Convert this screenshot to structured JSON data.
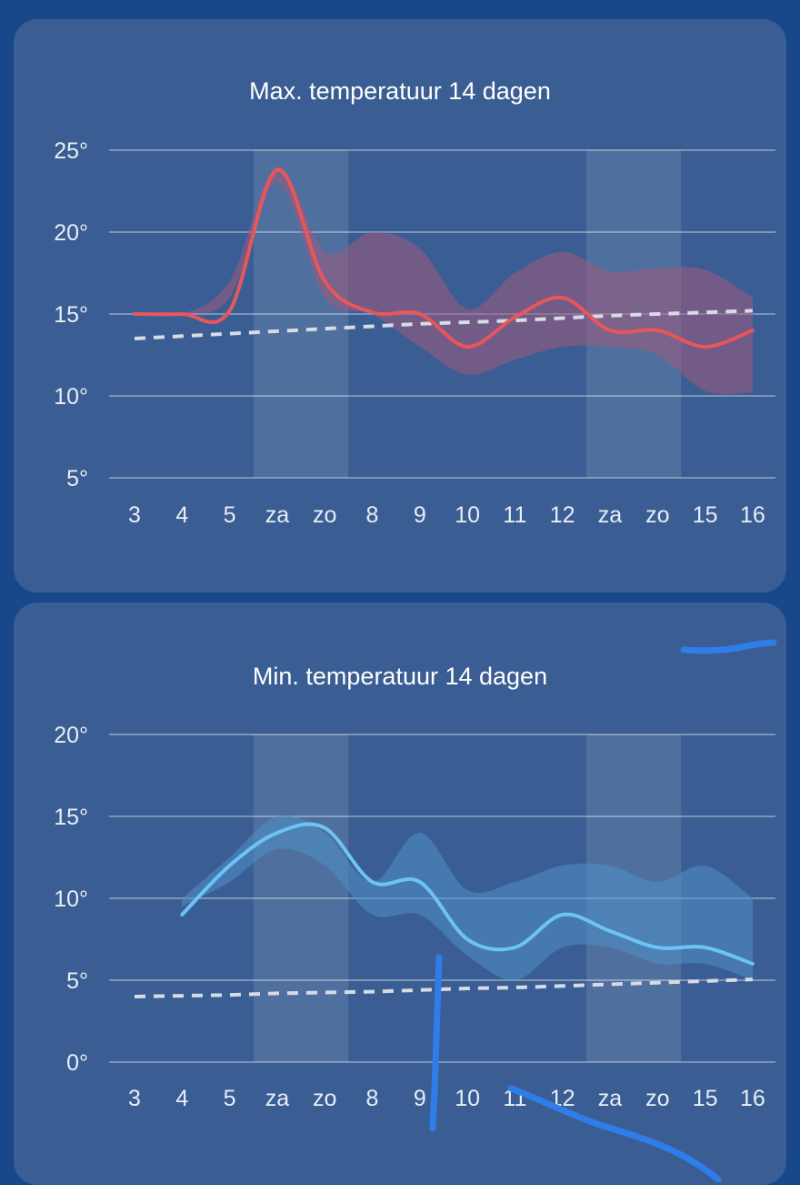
{
  "background_color": "#18478a",
  "card_color": "#3a5e93",
  "chart_data": [
    {
      "type": "line",
      "title": "Max. temperatuur 14 dagen",
      "xlabel": "",
      "ylabel": "",
      "categories": [
        "3",
        "4",
        "5",
        "za",
        "zo",
        "8",
        "9",
        "10",
        "11",
        "12",
        "za",
        "zo",
        "15",
        "16"
      ],
      "y_ticks": [
        5,
        10,
        15,
        20,
        25
      ],
      "y_tick_labels": [
        "5°",
        "10°",
        "15°",
        "20°",
        "25°"
      ],
      "ylim": [
        5,
        25
      ],
      "grid": true,
      "weekend_bands": [
        [
          3,
          4
        ],
        [
          10,
          11
        ]
      ],
      "series": [
        {
          "role": "forecast",
          "color": "#e8565a",
          "values": [
            15,
            15,
            15.2,
            23.8,
            17,
            15.1,
            15,
            13,
            14.8,
            16,
            14,
            14,
            13,
            14
          ]
        },
        {
          "role": "range",
          "color": "#a05a7e",
          "low": [
            15,
            15,
            16,
            23,
            16,
            15,
            13,
            11.3,
            12.2,
            13,
            13,
            12.5,
            10.3,
            10.2
          ],
          "high": [
            15,
            15,
            17,
            24,
            18.8,
            20,
            19,
            15.3,
            17.5,
            18.8,
            17.6,
            17.8,
            17.7,
            16
          ]
        },
        {
          "role": "normal",
          "style": "dashed",
          "color": "#d7dbe6",
          "values": [
            13.5,
            13.65,
            13.8,
            13.95,
            14.1,
            14.25,
            14.4,
            14.5,
            14.6,
            14.75,
            14.9,
            15.0,
            15.1,
            15.2
          ]
        }
      ]
    },
    {
      "type": "line",
      "title": "Min. temperatuur 14 dagen",
      "xlabel": "",
      "ylabel": "",
      "categories": [
        "3",
        "4",
        "5",
        "za",
        "zo",
        "8",
        "9",
        "10",
        "11",
        "12",
        "za",
        "zo",
        "15",
        "16"
      ],
      "y_ticks": [
        0,
        5,
        10,
        15,
        20
      ],
      "y_tick_labels": [
        "0°",
        "5°",
        "10°",
        "15°",
        "20°"
      ],
      "ylim": [
        0,
        20
      ],
      "grid": true,
      "weekend_bands": [
        [
          3,
          4
        ],
        [
          10,
          11
        ]
      ],
      "series": [
        {
          "role": "forecast",
          "color": "#6cc3f5",
          "values": [
            null,
            9,
            12,
            14,
            14.3,
            11,
            11,
            7.5,
            7,
            9,
            8,
            7,
            7,
            6
          ]
        },
        {
          "role": "range",
          "color": "#4e8fc7",
          "low": [
            null,
            9.5,
            11,
            13,
            12,
            9,
            9,
            6.5,
            5,
            7,
            7,
            6,
            6,
            5
          ],
          "high": [
            null,
            10,
            12.5,
            15,
            14,
            11,
            14,
            10.5,
            11,
            12,
            12,
            11,
            12,
            10
          ]
        },
        {
          "role": "normal",
          "style": "dashed",
          "color": "#d7dbe6",
          "values": [
            4,
            4.05,
            4.1,
            4.2,
            4.25,
            4.3,
            4.4,
            4.5,
            4.55,
            4.65,
            4.75,
            4.85,
            4.95,
            5.05
          ]
        }
      ]
    }
  ]
}
